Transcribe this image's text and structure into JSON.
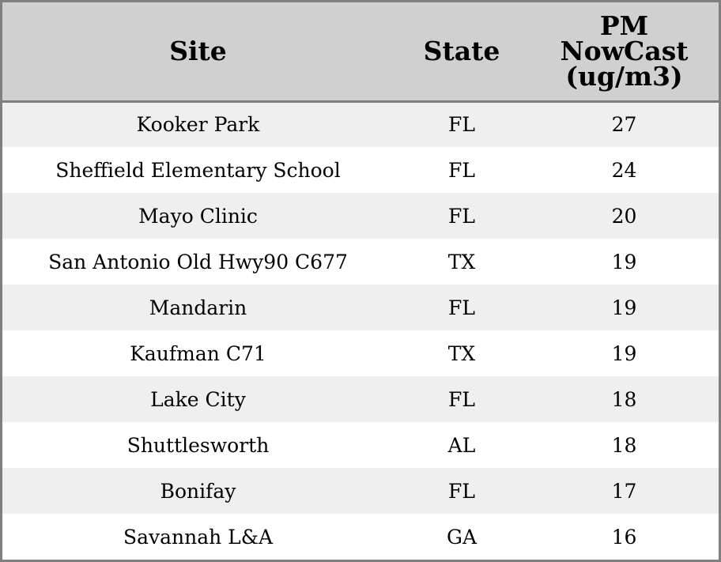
{
  "chart_data": {
    "type": "table",
    "columns": [
      "Site",
      "State",
      "PM NowCast (ug/m3)"
    ],
    "column_header_lines": [
      [
        "Site"
      ],
      [
        "State"
      ],
      [
        "PM",
        "NowCast",
        "(ug/m3)"
      ]
    ],
    "rows": [
      [
        "Kooker Park",
        "FL",
        "27"
      ],
      [
        "Sheffield Elementary School",
        "FL",
        "24"
      ],
      [
        "Mayo Clinic",
        "FL",
        "20"
      ],
      [
        "San Antonio Old Hwy90 C677",
        "TX",
        "19"
      ],
      [
        "Mandarin",
        "FL",
        "19"
      ],
      [
        "Kaufman C71",
        "TX",
        "19"
      ],
      [
        "Lake City",
        "FL",
        "18"
      ],
      [
        "Shuttlesworth",
        "AL",
        "18"
      ],
      [
        "Bonifay",
        "FL",
        "17"
      ],
      [
        "Savannah L&A",
        "GA",
        "16"
      ]
    ],
    "header_background": "#d0d0d0",
    "row_stripe_colors": [
      "#efefef",
      "#ffffff"
    ],
    "border_color": "#7f7f7f"
  }
}
